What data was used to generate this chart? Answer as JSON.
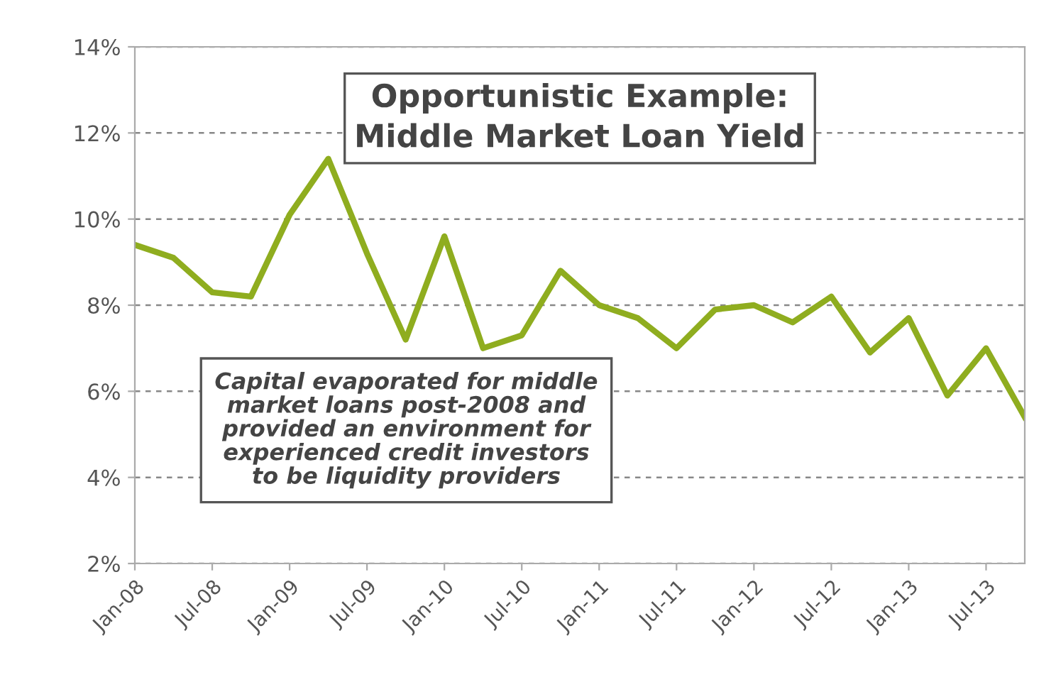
{
  "chart_data": {
    "type": "line",
    "title": "Opportunistic Example:\nMiddle Market Loan Yield",
    "categories": [
      "Jan-08",
      null,
      "Jul-08",
      null,
      "Jan-09",
      null,
      "Jul-09",
      null,
      "Jan-10",
      null,
      "Jul-10",
      null,
      "Jan-11",
      null,
      "Jul-11",
      null,
      "Jan-12",
      null,
      "Jul-12",
      null,
      "Jan-13",
      null,
      "Jul-13",
      null
    ],
    "series": [
      {
        "color": "#8fad1f",
        "values": [
          9.4,
          9.1,
          8.3,
          8.2,
          10.1,
          11.4,
          9.2,
          7.2,
          9.6,
          7.0,
          7.3,
          8.8,
          8.0,
          7.7,
          7.0,
          7.9,
          8.0,
          7.6,
          8.2,
          6.9,
          7.7,
          5.9,
          7.0,
          5.4
        ]
      }
    ],
    "ylim": [
      2,
      14
    ],
    "yticks": [
      {
        "value": 2,
        "label": "2%"
      },
      {
        "value": 4,
        "label": "4%"
      },
      {
        "value": 6,
        "label": "6%"
      },
      {
        "value": 8,
        "label": "8%"
      },
      {
        "value": 10,
        "label": "10%"
      },
      {
        "value": 12,
        "label": "12%"
      },
      {
        "value": 14,
        "label": "14%"
      }
    ],
    "grid": "y",
    "legend": false,
    "marker": "none",
    "line_style": "solid",
    "annotations": [
      "Capital evaporated for middle\nmarket loans post-2008 and\nprovided an environment for\nexperienced credit investors\nto be liquidity providers"
    ]
  }
}
